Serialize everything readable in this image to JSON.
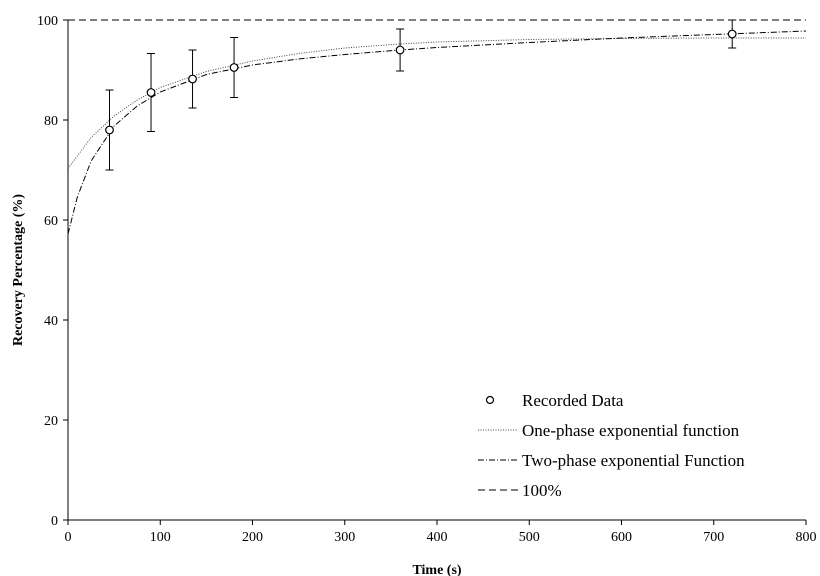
{
  "chart_data": {
    "type": "scatter",
    "xlabel": "Time (s)",
    "ylabel": "Recovery Percentage (%)",
    "xlim": [
      0,
      800
    ],
    "ylim": [
      0,
      100
    ],
    "xticks": [
      0,
      100,
      200,
      300,
      400,
      500,
      600,
      700,
      800
    ],
    "yticks": [
      0,
      20,
      40,
      60,
      80,
      100
    ],
    "grid": false,
    "legend_position": "bottom-right",
    "series": [
      {
        "name": "Recorded Data",
        "style": "open-circle-markers",
        "x": [
          45,
          90,
          135,
          180,
          360,
          720
        ],
        "y": [
          78,
          85.5,
          88.2,
          90.5,
          94,
          97.2
        ],
        "error": [
          8,
          7.8,
          5.8,
          6,
          4.2,
          2.8
        ]
      },
      {
        "name": "One-phase exponential function",
        "style": "dotted",
        "x": [
          0,
          25,
          50,
          75,
          100,
          150,
          200,
          250,
          300,
          360,
          400,
          500,
          600,
          700,
          800
        ],
        "y": [
          70.3,
          76.5,
          80.8,
          84.0,
          86.5,
          89.7,
          91.8,
          93.3,
          94.4,
          95.2,
          95.6,
          96.1,
          96.3,
          96.4,
          96.4
        ]
      },
      {
        "name": "Two-phase exponential Function",
        "style": "dash-dot",
        "x": [
          0,
          10,
          25,
          50,
          75,
          100,
          150,
          200,
          250,
          300,
          360,
          400,
          500,
          600,
          700,
          800
        ],
        "y": [
          57.2,
          64.5,
          71.8,
          78.8,
          82.8,
          85.6,
          89.1,
          91.0,
          92.2,
          93.1,
          94.0,
          94.5,
          95.5,
          96.4,
          97.1,
          97.8
        ]
      },
      {
        "name": "100%",
        "style": "dashed",
        "x": [
          0,
          800
        ],
        "y": [
          100,
          100
        ]
      }
    ]
  }
}
